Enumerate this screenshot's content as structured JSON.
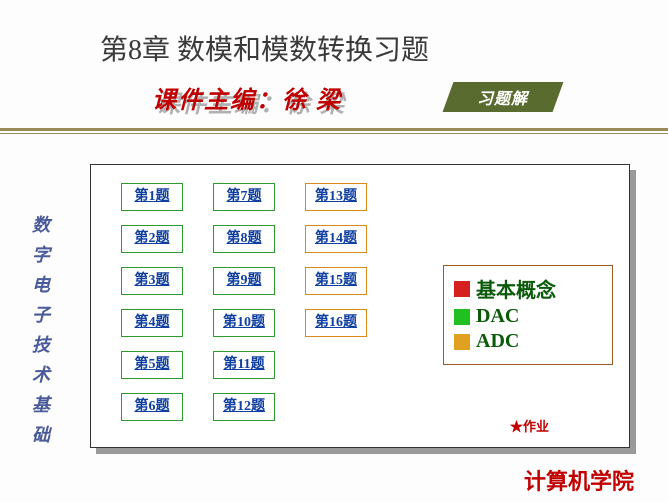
{
  "title": "第8章  数模和模数转换习题",
  "subtitle": "课件主编：徐  梁",
  "badge": "习题解",
  "left_label_chars": [
    "数",
    "字",
    "电",
    "子",
    "技",
    "术",
    "基",
    "础"
  ],
  "questions": {
    "col1": [
      "第1题",
      "第2题",
      "第3题",
      "第4题",
      "第5题",
      "第6题"
    ],
    "col2": [
      "第7题",
      "第8题",
      "第9题",
      "第10题",
      "第11题",
      "第12题"
    ],
    "col3": [
      "第13题",
      "第14题",
      "第15题",
      "第16题"
    ]
  },
  "colors": {
    "col12_border": "#2e9a2e",
    "col3_border": "#d98a1a",
    "badge_bg": "#5a6b2f",
    "rule": "#998b5a"
  },
  "legend": [
    {
      "label": "基本概念",
      "color": "#d62020"
    },
    {
      "label": "DAC",
      "color": "#20c020"
    },
    {
      "label": "ADC",
      "color": "#e0a020"
    }
  ],
  "footnote_star": "★",
  "footnote": "作业",
  "footer": "计算机学院"
}
